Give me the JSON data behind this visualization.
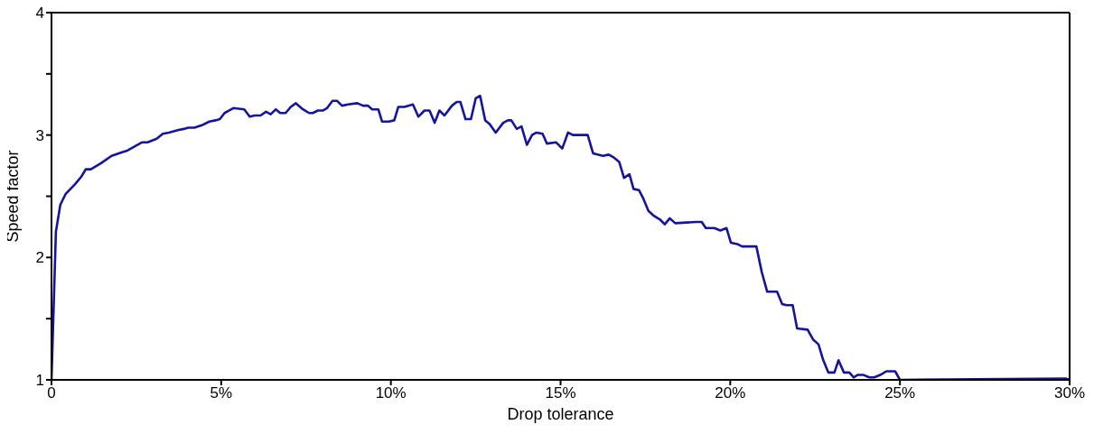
{
  "chart_data": {
    "type": "line",
    "xlabel": "Drop tolerance",
    "ylabel": "Speed factor",
    "xlim": [
      0,
      30
    ],
    "xticks": [
      0,
      {
        "value": 5,
        "label": "5%"
      },
      {
        "value": 10,
        "label": "10%"
      },
      {
        "value": 15,
        "label": "15%"
      },
      {
        "value": 20,
        "label": "20%"
      },
      {
        "value": 25,
        "label": "25%"
      },
      {
        "value": 30,
        "label": "30%"
      }
    ],
    "ylim": [
      1,
      4
    ],
    "yticks": [
      1,
      {
        "value": 1.5,
        "label": null
      },
      2,
      {
        "value": 2.5,
        "label": null
      },
      3,
      {
        "value": 3.5,
        "label": null
      },
      4
    ],
    "marker": "none",
    "line_style": "solid",
    "series": [
      {
        "color": "#1414a0",
        "x": [
          0,
          0.13,
          0.26,
          0.42,
          0.7,
          0.88,
          1.01,
          1.16,
          1.46,
          1.77,
          2.08,
          2.21,
          2.66,
          2.83,
          3.1,
          3.28,
          3.46,
          3.72,
          3.9,
          4.03,
          4.21,
          4.43,
          4.65,
          4.83,
          4.96,
          5.1,
          5.36,
          5.68,
          5.84,
          5.99,
          6.16,
          6.32,
          6.46,
          6.61,
          6.74,
          6.9,
          7.05,
          7.2,
          7.41,
          7.59,
          7.7,
          7.85,
          7.99,
          8.12,
          8.28,
          8.41,
          8.56,
          8.74,
          9.01,
          9.18,
          9.32,
          9.45,
          9.63,
          9.74,
          9.94,
          10.1,
          10.22,
          10.4,
          10.65,
          10.81,
          10.99,
          11.14,
          11.29,
          11.43,
          11.58,
          11.8,
          11.94,
          12.05,
          12.2,
          12.36,
          12.5,
          12.63,
          12.78,
          12.91,
          13.09,
          13.31,
          13.45,
          13.55,
          13.71,
          13.85,
          14.01,
          14.16,
          14.29,
          14.47,
          14.6,
          14.87,
          15.05,
          15.22,
          15.36,
          15.49,
          15.8,
          15.96,
          16.25,
          16.42,
          16.55,
          16.73,
          16.87,
          17.03,
          17.15,
          17.31,
          17.44,
          17.59,
          17.75,
          17.93,
          18.07,
          18.22,
          18.38,
          19.0,
          19.16,
          19.28,
          19.53,
          19.71,
          19.89,
          20.02,
          20.2,
          20.35,
          20.77,
          20.93,
          21.09,
          21.38,
          21.53,
          21.66,
          21.84,
          21.97,
          22.28,
          22.44,
          22.6,
          22.73,
          22.89,
          23.07,
          23.19,
          23.35,
          23.51,
          23.64,
          23.75,
          23.93,
          24.1,
          24.24,
          24.42,
          24.6,
          24.86,
          25.0,
          29.9,
          30
        ],
        "values": [
          1.0,
          2.21,
          2.43,
          2.52,
          2.6,
          2.66,
          2.72,
          2.72,
          2.77,
          2.83,
          2.86,
          2.87,
          2.94,
          2.94,
          2.97,
          3.01,
          3.02,
          3.04,
          3.05,
          3.06,
          3.06,
          3.08,
          3.11,
          3.12,
          3.13,
          3.18,
          3.22,
          3.21,
          3.15,
          3.16,
          3.16,
          3.19,
          3.17,
          3.21,
          3.18,
          3.18,
          3.23,
          3.26,
          3.21,
          3.18,
          3.18,
          3.2,
          3.2,
          3.22,
          3.28,
          3.28,
          3.24,
          3.25,
          3.26,
          3.24,
          3.24,
          3.21,
          3.21,
          3.11,
          3.11,
          3.12,
          3.23,
          3.23,
          3.25,
          3.15,
          3.2,
          3.2,
          3.1,
          3.2,
          3.16,
          3.24,
          3.27,
          3.27,
          3.13,
          3.13,
          3.3,
          3.32,
          3.12,
          3.09,
          3.02,
          3.1,
          3.12,
          3.12,
          3.05,
          3.07,
          2.92,
          3.0,
          3.02,
          3.01,
          2.93,
          2.94,
          2.89,
          3.02,
          3.0,
          3.0,
          3.0,
          2.85,
          2.83,
          2.84,
          2.82,
          2.78,
          2.65,
          2.68,
          2.56,
          2.55,
          2.48,
          2.38,
          2.34,
          2.31,
          2.27,
          2.32,
          2.28,
          2.29,
          2.29,
          2.24,
          2.24,
          2.22,
          2.24,
          2.12,
          2.11,
          2.09,
          2.09,
          1.88,
          1.72,
          1.72,
          1.62,
          1.61,
          1.61,
          1.42,
          1.41,
          1.33,
          1.29,
          1.17,
          1.06,
          1.06,
          1.16,
          1.06,
          1.06,
          1.02,
          1.04,
          1.04,
          1.02,
          1.02,
          1.04,
          1.07,
          1.07,
          1.0,
          1.01,
          1.0
        ]
      }
    ]
  }
}
